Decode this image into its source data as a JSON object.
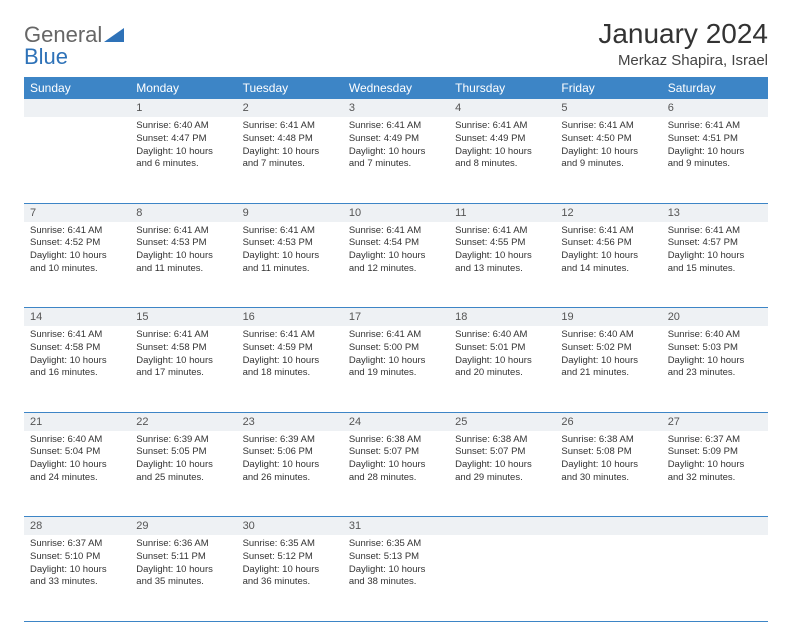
{
  "logo": {
    "word1": "General",
    "word2": "Blue"
  },
  "title": "January 2024",
  "location": "Merkaz Shapira, Israel",
  "colors": {
    "header_bg": "#3d85c6",
    "header_text": "#ffffff",
    "daynum_bg": "#eef1f4",
    "daynum_text": "#555555",
    "row_border": "#3d85c6",
    "body_text": "#333333",
    "logo_gray": "#666666",
    "logo_blue": "#2e72b8"
  },
  "day_names": [
    "Sunday",
    "Monday",
    "Tuesday",
    "Wednesday",
    "Thursday",
    "Friday",
    "Saturday"
  ],
  "weeks": [
    [
      {
        "num": "",
        "lines": []
      },
      {
        "num": "1",
        "lines": [
          "Sunrise: 6:40 AM",
          "Sunset: 4:47 PM",
          "Daylight: 10 hours",
          "and 6 minutes."
        ]
      },
      {
        "num": "2",
        "lines": [
          "Sunrise: 6:41 AM",
          "Sunset: 4:48 PM",
          "Daylight: 10 hours",
          "and 7 minutes."
        ]
      },
      {
        "num": "3",
        "lines": [
          "Sunrise: 6:41 AM",
          "Sunset: 4:49 PM",
          "Daylight: 10 hours",
          "and 7 minutes."
        ]
      },
      {
        "num": "4",
        "lines": [
          "Sunrise: 6:41 AM",
          "Sunset: 4:49 PM",
          "Daylight: 10 hours",
          "and 8 minutes."
        ]
      },
      {
        "num": "5",
        "lines": [
          "Sunrise: 6:41 AM",
          "Sunset: 4:50 PM",
          "Daylight: 10 hours",
          "and 9 minutes."
        ]
      },
      {
        "num": "6",
        "lines": [
          "Sunrise: 6:41 AM",
          "Sunset: 4:51 PM",
          "Daylight: 10 hours",
          "and 9 minutes."
        ]
      }
    ],
    [
      {
        "num": "7",
        "lines": [
          "Sunrise: 6:41 AM",
          "Sunset: 4:52 PM",
          "Daylight: 10 hours",
          "and 10 minutes."
        ]
      },
      {
        "num": "8",
        "lines": [
          "Sunrise: 6:41 AM",
          "Sunset: 4:53 PM",
          "Daylight: 10 hours",
          "and 11 minutes."
        ]
      },
      {
        "num": "9",
        "lines": [
          "Sunrise: 6:41 AM",
          "Sunset: 4:53 PM",
          "Daylight: 10 hours",
          "and 11 minutes."
        ]
      },
      {
        "num": "10",
        "lines": [
          "Sunrise: 6:41 AM",
          "Sunset: 4:54 PM",
          "Daylight: 10 hours",
          "and 12 minutes."
        ]
      },
      {
        "num": "11",
        "lines": [
          "Sunrise: 6:41 AM",
          "Sunset: 4:55 PM",
          "Daylight: 10 hours",
          "and 13 minutes."
        ]
      },
      {
        "num": "12",
        "lines": [
          "Sunrise: 6:41 AM",
          "Sunset: 4:56 PM",
          "Daylight: 10 hours",
          "and 14 minutes."
        ]
      },
      {
        "num": "13",
        "lines": [
          "Sunrise: 6:41 AM",
          "Sunset: 4:57 PM",
          "Daylight: 10 hours",
          "and 15 minutes."
        ]
      }
    ],
    [
      {
        "num": "14",
        "lines": [
          "Sunrise: 6:41 AM",
          "Sunset: 4:58 PM",
          "Daylight: 10 hours",
          "and 16 minutes."
        ]
      },
      {
        "num": "15",
        "lines": [
          "Sunrise: 6:41 AM",
          "Sunset: 4:58 PM",
          "Daylight: 10 hours",
          "and 17 minutes."
        ]
      },
      {
        "num": "16",
        "lines": [
          "Sunrise: 6:41 AM",
          "Sunset: 4:59 PM",
          "Daylight: 10 hours",
          "and 18 minutes."
        ]
      },
      {
        "num": "17",
        "lines": [
          "Sunrise: 6:41 AM",
          "Sunset: 5:00 PM",
          "Daylight: 10 hours",
          "and 19 minutes."
        ]
      },
      {
        "num": "18",
        "lines": [
          "Sunrise: 6:40 AM",
          "Sunset: 5:01 PM",
          "Daylight: 10 hours",
          "and 20 minutes."
        ]
      },
      {
        "num": "19",
        "lines": [
          "Sunrise: 6:40 AM",
          "Sunset: 5:02 PM",
          "Daylight: 10 hours",
          "and 21 minutes."
        ]
      },
      {
        "num": "20",
        "lines": [
          "Sunrise: 6:40 AM",
          "Sunset: 5:03 PM",
          "Daylight: 10 hours",
          "and 23 minutes."
        ]
      }
    ],
    [
      {
        "num": "21",
        "lines": [
          "Sunrise: 6:40 AM",
          "Sunset: 5:04 PM",
          "Daylight: 10 hours",
          "and 24 minutes."
        ]
      },
      {
        "num": "22",
        "lines": [
          "Sunrise: 6:39 AM",
          "Sunset: 5:05 PM",
          "Daylight: 10 hours",
          "and 25 minutes."
        ]
      },
      {
        "num": "23",
        "lines": [
          "Sunrise: 6:39 AM",
          "Sunset: 5:06 PM",
          "Daylight: 10 hours",
          "and 26 minutes."
        ]
      },
      {
        "num": "24",
        "lines": [
          "Sunrise: 6:38 AM",
          "Sunset: 5:07 PM",
          "Daylight: 10 hours",
          "and 28 minutes."
        ]
      },
      {
        "num": "25",
        "lines": [
          "Sunrise: 6:38 AM",
          "Sunset: 5:07 PM",
          "Daylight: 10 hours",
          "and 29 minutes."
        ]
      },
      {
        "num": "26",
        "lines": [
          "Sunrise: 6:38 AM",
          "Sunset: 5:08 PM",
          "Daylight: 10 hours",
          "and 30 minutes."
        ]
      },
      {
        "num": "27",
        "lines": [
          "Sunrise: 6:37 AM",
          "Sunset: 5:09 PM",
          "Daylight: 10 hours",
          "and 32 minutes."
        ]
      }
    ],
    [
      {
        "num": "28",
        "lines": [
          "Sunrise: 6:37 AM",
          "Sunset: 5:10 PM",
          "Daylight: 10 hours",
          "and 33 minutes."
        ]
      },
      {
        "num": "29",
        "lines": [
          "Sunrise: 6:36 AM",
          "Sunset: 5:11 PM",
          "Daylight: 10 hours",
          "and 35 minutes."
        ]
      },
      {
        "num": "30",
        "lines": [
          "Sunrise: 6:35 AM",
          "Sunset: 5:12 PM",
          "Daylight: 10 hours",
          "and 36 minutes."
        ]
      },
      {
        "num": "31",
        "lines": [
          "Sunrise: 6:35 AM",
          "Sunset: 5:13 PM",
          "Daylight: 10 hours",
          "and 38 minutes."
        ]
      },
      {
        "num": "",
        "lines": []
      },
      {
        "num": "",
        "lines": []
      },
      {
        "num": "",
        "lines": []
      }
    ]
  ]
}
